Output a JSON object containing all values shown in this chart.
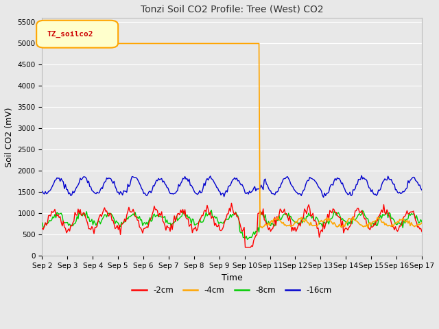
{
  "title": "Tonzi Soil CO2 Profile: Tree (West) CO2",
  "ylabel": "Soil CO2 (mV)",
  "xlabel": "Time",
  "ylim": [
    0,
    5600
  ],
  "yticks": [
    0,
    500,
    1000,
    1500,
    2000,
    2500,
    3000,
    3500,
    4000,
    4500,
    5000,
    5500
  ],
  "xtick_labels": [
    "Sep 2",
    "Sep 3",
    "Sep 4",
    "Sep 5",
    "Sep 6",
    "Sep 7",
    "Sep 8",
    "Sep 9",
    "Sep 10",
    "Sep 11",
    "Sep 12",
    "Sep 13",
    "Sep 14",
    "Sep 15",
    "Sep 16",
    "Sep 17"
  ],
  "fig_bg_color": "#e8e8e8",
  "plot_bg_color": "#e8e8e8",
  "grid_color": "#ffffff",
  "colors": {
    "2cm": "#ff0000",
    "4cm": "#ffa500",
    "8cm": "#00cc00",
    "16cm": "#0000cd"
  },
  "legend_label": "TZ_soilco2",
  "legend_box_color": "#ffffcc",
  "legend_box_edge": "#ffa500",
  "title_fontsize": 10,
  "axis_label_fontsize": 9,
  "tick_fontsize": 7.5,
  "legend_fontsize": 8.5
}
